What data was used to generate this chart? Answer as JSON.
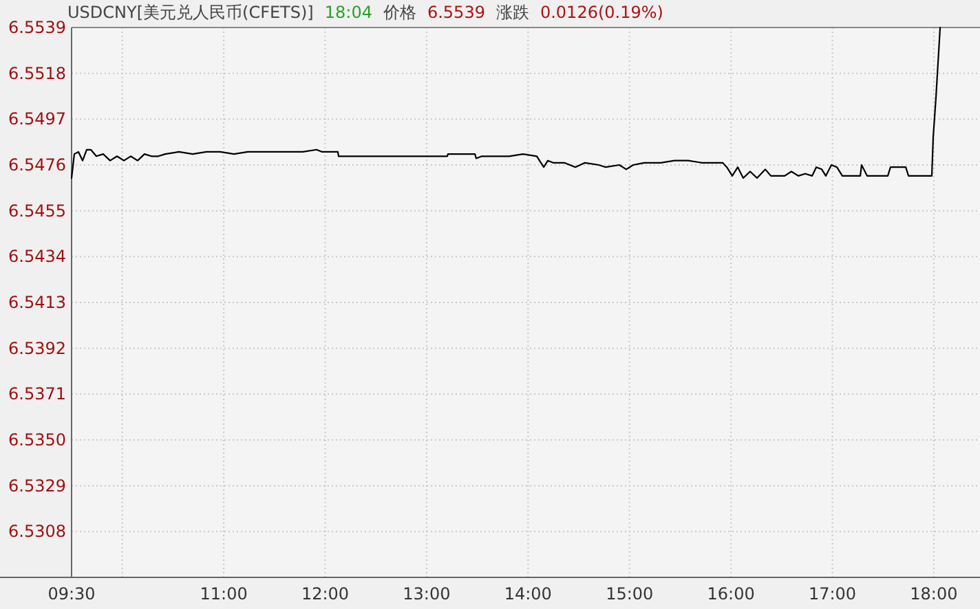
{
  "chart_data": {
    "type": "line",
    "title": "USDCNY[美元兑人民币(CFETS)]",
    "annotations": [
      "18:04",
      "价格",
      "6.5539",
      "涨跌",
      "0.0126(0.19%)"
    ],
    "xlim": [
      9.5,
      18.455
    ],
    "xticks": [
      {
        "value": 9.5,
        "label": "09:30"
      },
      {
        "value": 10,
        "label": null
      },
      {
        "value": 11,
        "label": "11:00"
      },
      {
        "value": 12,
        "label": "12:00"
      },
      {
        "value": 13,
        "label": "13:00"
      },
      {
        "value": 14,
        "label": "14:00"
      },
      {
        "value": 15,
        "label": "15:00"
      },
      {
        "value": 16,
        "label": "16:00"
      },
      {
        "value": 17,
        "label": "17:00"
      },
      {
        "value": 18,
        "label": "18:00"
      }
    ],
    "ylim": [
      6.5287,
      6.5539
    ],
    "yticks": [
      6.5539,
      6.5518,
      6.5497,
      6.5476,
      6.5455,
      6.5434,
      6.5413,
      6.5392,
      6.5371,
      {
        "value": 6.535,
        "label": "6.5350"
      },
      6.5329,
      6.5308
    ],
    "grid": true,
    "marker": "none",
    "line_style": "solid",
    "series": [
      {
        "color": "#000000",
        "x": [
          9.5,
          9.527,
          9.568,
          9.609,
          9.649,
          9.69,
          9.744,
          9.812,
          9.88,
          9.948,
          10.016,
          10.083,
          10.151,
          10.219,
          10.287,
          10.355,
          10.423,
          10.558,
          10.694,
          10.83,
          10.965,
          11.101,
          11.237,
          11.372,
          11.508,
          11.644,
          11.78,
          11.915,
          11.97,
          12.125,
          12.132,
          12.865,
          13.204,
          13.21,
          13.476,
          13.489,
          13.543,
          13.679,
          13.815,
          13.95,
          14.086,
          14.113,
          14.154,
          14.195,
          14.249,
          14.358,
          14.466,
          14.561,
          14.697,
          14.765,
          14.9,
          14.968,
          15.036,
          15.145,
          15.307,
          15.443,
          15.579,
          15.714,
          15.85,
          15.918,
          15.959,
          16.013,
          16.067,
          16.121,
          16.189,
          16.257,
          16.339,
          16.393,
          16.529,
          16.596,
          16.664,
          16.732,
          16.8,
          16.841,
          16.895,
          16.935,
          16.99,
          17.044,
          17.098,
          17.275,
          17.288,
          17.343,
          17.546,
          17.573,
          17.723,
          17.75,
          17.98,
          17.994,
          18.021,
          18.062
        ],
        "values": [
          6.547,
          6.5481,
          6.5482,
          6.5478,
          6.5483,
          6.5483,
          6.548,
          6.5481,
          6.5478,
          6.548,
          6.5478,
          6.548,
          6.5478,
          6.5481,
          6.548,
          6.548,
          6.5481,
          6.5482,
          6.5481,
          6.5482,
          6.5482,
          6.5481,
          6.5482,
          6.5482,
          6.5482,
          6.5482,
          6.5482,
          6.5483,
          6.5482,
          6.5482,
          6.548,
          6.548,
          6.548,
          6.5481,
          6.5481,
          6.5479,
          6.548,
          6.548,
          6.548,
          6.5481,
          6.548,
          6.5478,
          6.5475,
          6.5478,
          6.5477,
          6.5477,
          6.5475,
          6.5477,
          6.5476,
          6.5475,
          6.5476,
          6.5474,
          6.5476,
          6.5477,
          6.5477,
          6.5478,
          6.5478,
          6.5477,
          6.5477,
          6.5477,
          6.5475,
          6.5471,
          6.5475,
          6.547,
          6.5473,
          6.547,
          6.5474,
          6.5471,
          6.5471,
          6.5473,
          6.5471,
          6.5472,
          6.5471,
          6.5475,
          6.5474,
          6.5471,
          6.5476,
          6.5475,
          6.5471,
          6.5471,
          6.5476,
          6.5471,
          6.5471,
          6.5475,
          6.5475,
          6.5471,
          6.5471,
          6.5489,
          6.5507,
          6.5539
        ]
      }
    ]
  }
}
